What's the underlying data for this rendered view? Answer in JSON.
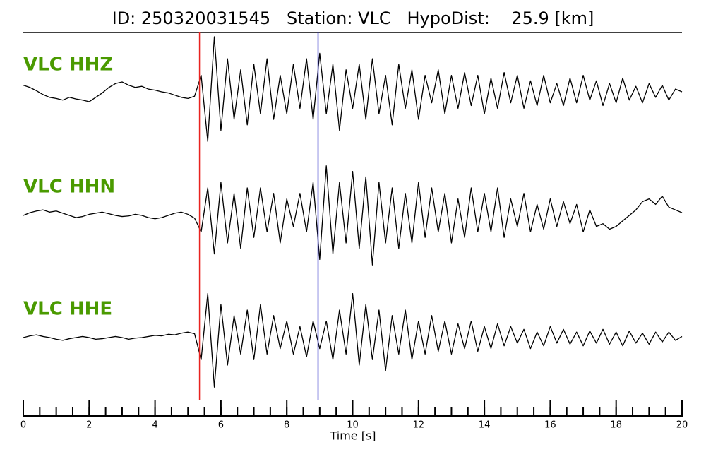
{
  "chart_data": {
    "type": "line",
    "title": "ID: 250320031545   Station: VLC   HypoDist:    25.9 [km]",
    "xlabel": "Time [s]",
    "xlim": [
      0,
      20
    ],
    "xticks": [
      0,
      2,
      4,
      6,
      8,
      10,
      12,
      14,
      16,
      18,
      20
    ],
    "xminorticks": [
      0,
      0.5,
      1,
      1.5,
      2,
      2.5,
      3,
      3.5,
      4,
      4.5,
      5,
      5.5,
      6,
      6.5,
      7,
      7.5,
      8,
      8.5,
      9,
      9.5,
      10,
      10.5,
      11,
      11.5,
      12,
      12.5,
      13,
      13.5,
      14,
      14.5,
      15,
      15.5,
      16,
      16.5,
      17,
      17.5,
      18,
      18.5,
      19,
      19.5,
      20
    ],
    "markers": [
      {
        "x": 5.35,
        "color": "#e8231f"
      },
      {
        "x": 8.95,
        "color": "#2a2ac8"
      }
    ],
    "x": [
      0,
      0.2,
      0.4,
      0.6,
      0.8,
      1,
      1.2,
      1.4,
      1.6,
      1.8,
      2,
      2.2,
      2.4,
      2.6,
      2.8,
      3,
      3.2,
      3.4,
      3.6,
      3.8,
      4,
      4.2,
      4.4,
      4.6,
      4.8,
      5,
      5.2,
      5.4,
      5.6,
      5.8,
      6,
      6.2,
      6.4,
      6.6,
      6.8,
      7,
      7.2,
      7.4,
      7.6,
      7.8,
      8,
      8.2,
      8.4,
      8.6,
      8.8,
      9,
      9.2,
      9.4,
      9.6,
      9.8,
      10,
      10.2,
      10.4,
      10.6,
      10.8,
      11,
      11.2,
      11.4,
      11.6,
      11.8,
      12,
      12.2,
      12.4,
      12.6,
      12.8,
      13,
      13.2,
      13.4,
      13.6,
      13.8,
      14,
      14.2,
      14.4,
      14.6,
      14.8,
      15,
      15.2,
      15.4,
      15.6,
      15.8,
      16,
      16.2,
      16.4,
      16.6,
      16.8,
      17,
      17.2,
      17.4,
      17.6,
      17.8,
      18,
      18.2,
      18.4,
      18.6,
      18.8,
      19,
      19.2,
      19.4,
      19.6,
      19.8,
      20
    ],
    "series": [
      {
        "name": "VLC HHZ",
        "color": "#000000",
        "values": [
          0.12,
          0.08,
          0.02,
          -0.05,
          -0.1,
          -0.12,
          -0.15,
          -0.1,
          -0.13,
          -0.15,
          -0.18,
          -0.1,
          -0.02,
          0.08,
          0.15,
          0.18,
          0.12,
          0.08,
          0.1,
          0.05,
          0.03,
          0.0,
          -0.02,
          -0.06,
          -0.1,
          -0.12,
          -0.08,
          0.3,
          -0.9,
          1.0,
          -0.7,
          0.6,
          -0.5,
          0.4,
          -0.6,
          0.5,
          -0.4,
          0.6,
          -0.5,
          0.3,
          -0.4,
          0.5,
          -0.3,
          0.6,
          -0.5,
          0.7,
          -0.4,
          0.5,
          -0.7,
          0.4,
          -0.3,
          0.5,
          -0.5,
          0.6,
          -0.4,
          0.3,
          -0.6,
          0.5,
          -0.3,
          0.4,
          -0.5,
          0.3,
          -0.2,
          0.4,
          -0.4,
          0.3,
          -0.3,
          0.35,
          -0.25,
          0.3,
          -0.4,
          0.25,
          -0.3,
          0.35,
          -0.2,
          0.3,
          -0.3,
          0.2,
          -0.25,
          0.3,
          -0.2,
          0.15,
          -0.25,
          0.25,
          -0.2,
          0.3,
          -0.15,
          0.2,
          -0.25,
          0.15,
          -0.2,
          0.25,
          -0.15,
          0.1,
          -0.2,
          0.15,
          -0.1,
          0.12,
          -0.15,
          0.05,
          0.0
        ]
      },
      {
        "name": "VLC HHN",
        "color": "#000000",
        "values": [
          0.0,
          0.05,
          0.08,
          0.1,
          0.06,
          0.08,
          0.04,
          0.0,
          -0.04,
          -0.02,
          0.02,
          0.04,
          0.06,
          0.03,
          0.0,
          -0.02,
          -0.01,
          0.02,
          0.0,
          -0.04,
          -0.06,
          -0.04,
          0.0,
          0.04,
          0.06,
          0.02,
          -0.05,
          -0.3,
          0.5,
          -0.7,
          0.6,
          -0.5,
          0.4,
          -0.6,
          0.5,
          -0.4,
          0.5,
          -0.3,
          0.4,
          -0.5,
          0.3,
          -0.2,
          0.4,
          -0.3,
          0.6,
          -0.8,
          0.9,
          -0.7,
          0.6,
          -0.5,
          0.8,
          -0.6,
          0.7,
          -0.9,
          0.6,
          -0.5,
          0.5,
          -0.6,
          0.4,
          -0.5,
          0.6,
          -0.4,
          0.5,
          -0.3,
          0.4,
          -0.5,
          0.3,
          -0.4,
          0.5,
          -0.3,
          0.4,
          -0.3,
          0.5,
          -0.4,
          0.3,
          -0.2,
          0.4,
          -0.3,
          0.2,
          -0.25,
          0.3,
          -0.2,
          0.25,
          -0.15,
          0.2,
          -0.3,
          0.1,
          -0.2,
          -0.15,
          -0.25,
          -0.2,
          -0.1,
          0.0,
          0.1,
          0.25,
          0.3,
          0.2,
          0.35,
          0.15,
          0.1,
          0.05
        ]
      },
      {
        "name": "VLC HHE",
        "color": "#000000",
        "values": [
          0.0,
          0.03,
          0.05,
          0.02,
          0.0,
          -0.03,
          -0.05,
          -0.02,
          0.0,
          0.02,
          0.0,
          -0.03,
          -0.02,
          0.0,
          0.02,
          0.0,
          -0.03,
          -0.01,
          0.0,
          0.02,
          0.04,
          0.03,
          0.06,
          0.05,
          0.08,
          0.1,
          0.07,
          -0.4,
          0.8,
          -0.9,
          0.6,
          -0.5,
          0.4,
          -0.3,
          0.5,
          -0.4,
          0.6,
          -0.3,
          0.4,
          -0.2,
          0.3,
          -0.3,
          0.2,
          -0.35,
          0.3,
          -0.2,
          0.3,
          -0.4,
          0.5,
          -0.3,
          0.8,
          -0.5,
          0.6,
          -0.4,
          0.5,
          -0.6,
          0.4,
          -0.3,
          0.5,
          -0.4,
          0.3,
          -0.3,
          0.4,
          -0.25,
          0.3,
          -0.3,
          0.25,
          -0.2,
          0.3,
          -0.25,
          0.2,
          -0.2,
          0.25,
          -0.15,
          0.2,
          -0.1,
          0.15,
          -0.2,
          0.1,
          -0.15,
          0.2,
          -0.1,
          0.15,
          -0.12,
          0.1,
          -0.15,
          0.12,
          -0.1,
          0.15,
          -0.12,
          0.1,
          -0.15,
          0.12,
          -0.1,
          0.08,
          -0.12,
          0.1,
          -0.08,
          0.1,
          -0.05,
          0.02
        ]
      }
    ]
  }
}
